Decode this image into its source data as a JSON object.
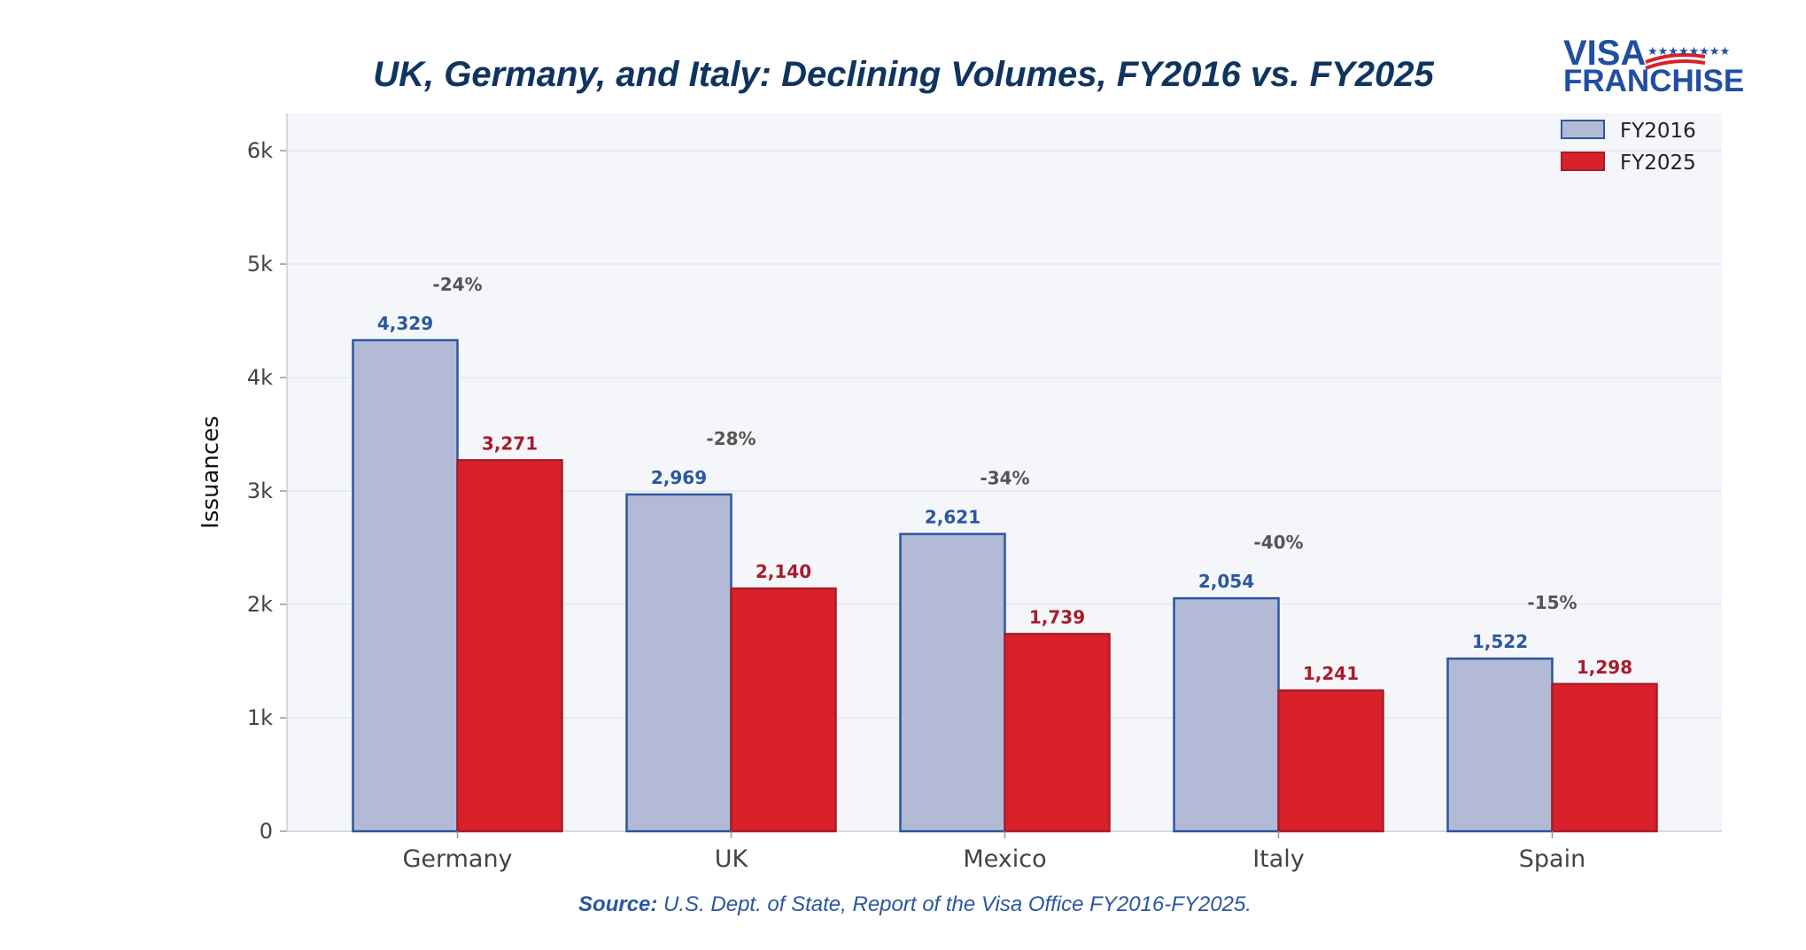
{
  "chart_data": {
    "type": "bar",
    "title": "UK, Germany, and Italy: Declining Volumes, FY2016 vs. FY2025",
    "ylabel": "Issuances",
    "xlabel": "",
    "ylim": [
      0,
      6300
    ],
    "yticks": [
      0,
      1000,
      2000,
      3000,
      4000,
      5000,
      6000
    ],
    "ytick_labels": [
      "0",
      "1k",
      "2k",
      "3k",
      "4k",
      "5k",
      "6k"
    ],
    "grid": true,
    "legend_position": "top-right",
    "categories": [
      "Germany",
      "UK",
      "Mexico",
      "Italy",
      "Spain"
    ],
    "series": [
      {
        "name": "FY2016",
        "values": [
          4329,
          2969,
          2621,
          2054,
          1522
        ],
        "labels": [
          "4,329",
          "2,969",
          "2,621",
          "2,054",
          "1,522"
        ],
        "color": "#b3bad6",
        "edge": "#2b57a0"
      },
      {
        "name": "FY2025",
        "values": [
          3271,
          2140,
          1739,
          1241,
          1298
        ],
        "labels": [
          "3,271",
          "2,140",
          "1,739",
          "1,241",
          "1,298"
        ],
        "color": "#d92129",
        "edge": "#a81c2c"
      }
    ],
    "annotations": [
      "-24%",
      "-28%",
      "-34%",
      "-40%",
      "-15%"
    ]
  },
  "source": {
    "prefix": "Source:",
    "text": " U.S. Dept. of State, Report of the Visa Office FY2016-FY2025."
  },
  "logo": {
    "line1": "VISA",
    "line2": "FRANCHISE"
  },
  "colors": {
    "plot_bg": "#f5f6fa",
    "grid": "#e4e7ef",
    "axis": "#c9cde0",
    "title": "#0f3460"
  }
}
